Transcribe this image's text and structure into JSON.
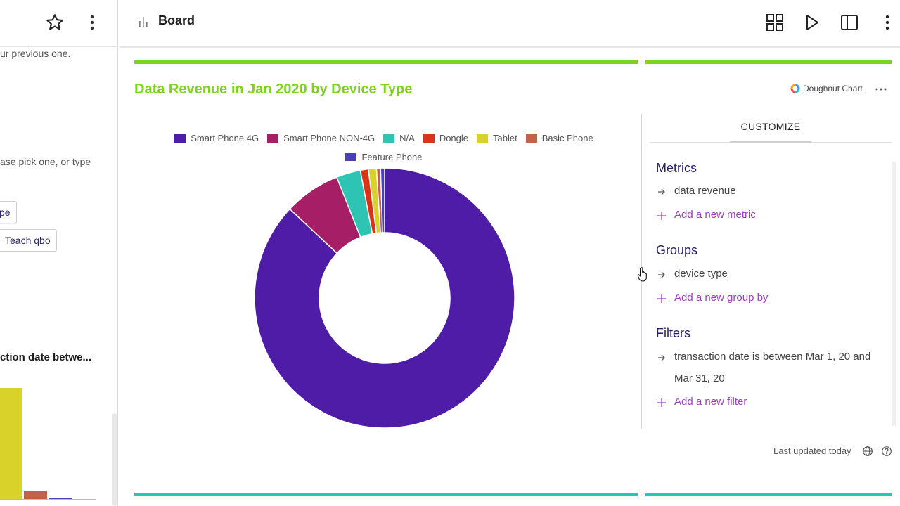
{
  "left_panel": {
    "text1": "ur previous one.",
    "text2": "ase pick one, or type",
    "chip1_label": "pe",
    "chip2_label": "Teach qbo",
    "bold_text": "ction date betwe..."
  },
  "header": {
    "title": "Board"
  },
  "card": {
    "title": "Data Revenue in Jan 2020 by Device Type",
    "chart_type_label": "Doughnut Chart",
    "last_updated": "Last updated today"
  },
  "customize": {
    "tab_label": "CUSTOMIZE",
    "metrics_title": "Metrics",
    "metric_item": "data revenue",
    "add_metric": "Add a new metric",
    "groups_title": "Groups",
    "group_item": "device type",
    "add_group": "Add a new group by",
    "filters_title": "Filters",
    "filter_item": "transaction date is between Mar 1, 20 and Mar 31, 20",
    "add_filter": "Add a new filter"
  },
  "colors": {
    "accent_green": "#7ed321",
    "accent_teal": "#1fc8bb",
    "section_purple": "#2a1f6b",
    "add_purple": "#9b3fc0"
  },
  "chart_data": {
    "type": "pie",
    "subtype": "doughnut",
    "title": "Data Revenue in Jan 2020 by Device Type",
    "legend_position": "top",
    "categories": [
      "Smart Phone 4G",
      "Smart Phone NON-4G",
      "N/A",
      "Dongle",
      "Tablet",
      "Basic Phone",
      "Feature Phone"
    ],
    "values": [
      87.0,
      7.0,
      3.0,
      1.0,
      1.0,
      0.5,
      0.5
    ],
    "colors": [
      "#4e1ca6",
      "#a61f66",
      "#2ec4b4",
      "#d93419",
      "#d8d22a",
      "#c3614a",
      "#4a3fb8"
    ]
  }
}
